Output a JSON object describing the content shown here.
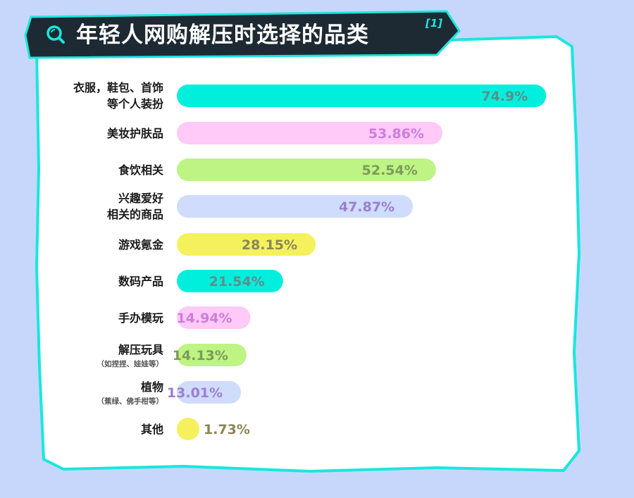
{
  "title": "年轻人网购解压时选择的品类",
  "title_ref": "[1]",
  "colors": {
    "background": "#c6d7fb",
    "banner": "#1e2a33",
    "accent": "#18e7dd",
    "panel": "#ffffff"
  },
  "chart_data": {
    "type": "bar",
    "orientation": "horizontal",
    "xlim": [
      0,
      100
    ],
    "categories": [
      {
        "lines": [
          "衣服，鞋包、首饰",
          "等个人装扮"
        ],
        "sub": ""
      },
      {
        "lines": [
          "美妆护肤品"
        ],
        "sub": ""
      },
      {
        "lines": [
          "食饮相关"
        ],
        "sub": ""
      },
      {
        "lines": [
          "兴趣爱好",
          "相关的商品"
        ],
        "sub": ""
      },
      {
        "lines": [
          "游戏氪金"
        ],
        "sub": ""
      },
      {
        "lines": [
          "数码产品"
        ],
        "sub": ""
      },
      {
        "lines": [
          "手办模玩"
        ],
        "sub": ""
      },
      {
        "lines": [
          "解压玩具"
        ],
        "sub": "（如捏捏、娃娃等）"
      },
      {
        "lines": [
          "植物"
        ],
        "sub": "（蕉绿、佛手柑等）"
      },
      {
        "lines": [
          "其他"
        ],
        "sub": ""
      }
    ],
    "values": [
      74.9,
      53.86,
      52.54,
      47.87,
      28.15,
      21.54,
      14.94,
      14.13,
      13.01,
      1.73
    ],
    "value_labels": [
      "74.9%",
      "53.86%",
      "52.54%",
      "47.87%",
      "28.15%",
      "21.54%",
      "14.94%",
      "14.13%",
      "13.01%",
      "1.73%"
    ],
    "bar_colors": [
      "#00efdd",
      "#ffc9f8",
      "#bdf484",
      "#cfdcfb",
      "#f4f15c",
      "#00efdd",
      "#ffc9f8",
      "#bdf484",
      "#cfdcfb",
      "#f4f15c"
    ],
    "value_colors": [
      "#5d8f8a",
      "#cc7fd9",
      "#7d9a5a",
      "#9b7fd0",
      "#8a8656",
      "#5d8f8a",
      "#cc7fd9",
      "#7d9a5a",
      "#9b7fd0",
      "#8a8656"
    ]
  }
}
